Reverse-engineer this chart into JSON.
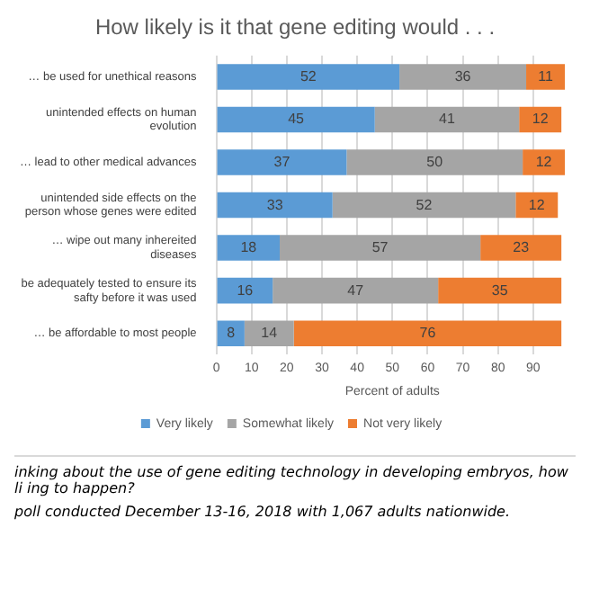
{
  "chart_data": {
    "type": "bar",
    "orientation": "horizontal",
    "stacked": true,
    "title": "How likely is it that gene editing would . . .",
    "xlabel": "Percent of adults",
    "categories": [
      "… be used for unethical reasons",
      "unintended effects on human evolution",
      "… lead to other medical advances",
      "unintended side effects on the person whose genes were edited",
      "… wipe out many inhereited diseases",
      "be adequately tested to ensure its safty before it was used",
      "… be affordable to most people"
    ],
    "series": [
      {
        "name": "Very likely",
        "color": "#5b9bd5",
        "values": [
          52,
          45,
          37,
          33,
          18,
          16,
          8
        ]
      },
      {
        "name": "Somewhat likely",
        "color": "#a5a5a5",
        "values": [
          36,
          41,
          50,
          52,
          57,
          47,
          14
        ]
      },
      {
        "name": "Not very likely",
        "color": "#ed7d31",
        "values": [
          11,
          12,
          12,
          12,
          23,
          35,
          76
        ]
      }
    ],
    "xlim": [
      0,
      100
    ],
    "xticks": [
      0,
      10,
      20,
      30,
      40,
      50,
      60,
      70,
      80,
      90
    ],
    "grid": "x",
    "legend": "bottom",
    "data_labels": true,
    "annotations": [
      "inking about the use of gene editing technology in developing embryos, how li ing to happen?",
      "poll conducted December 13-16, 2018 with 1,067 adults nationwide."
    ]
  }
}
